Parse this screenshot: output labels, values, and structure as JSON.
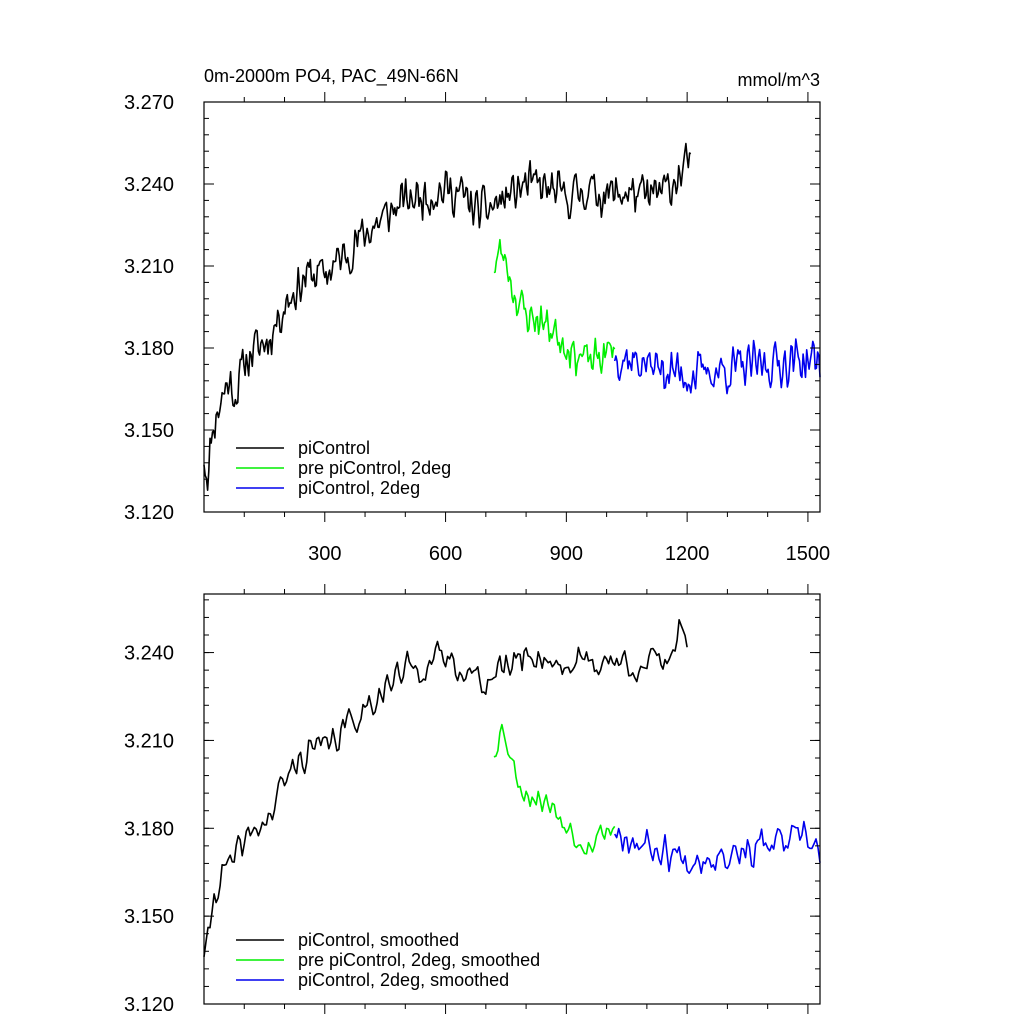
{
  "figure": {
    "title": "0m-2000m PO4, PAC_49N-66N",
    "units": "mmol/m^3"
  },
  "colors": {
    "piControl": "#000000",
    "pre_piControl_2deg": "#00ee00",
    "piControl_2deg": "#0000ee"
  },
  "chart_data": [
    {
      "type": "line",
      "title": "0m-2000m PO4, PAC_49N-66N",
      "units_label": "mmol/m^3",
      "xlabel": "",
      "ylabel": "",
      "xlim": [
        0,
        1530
      ],
      "ylim": [
        3.12,
        3.27
      ],
      "xticks": [
        300,
        600,
        900,
        1200,
        1500
      ],
      "xtick_labels": [
        "300",
        "600",
        "900",
        "1200",
        "1500"
      ],
      "yticks": [
        3.12,
        3.15,
        3.18,
        3.21,
        3.24,
        3.27
      ],
      "ytick_labels": [
        "3.120",
        "3.150",
        "3.180",
        "3.210",
        "3.240",
        "3.270"
      ],
      "legend_position": "bottom-left",
      "series": [
        {
          "name": "piControl",
          "color": "#000000",
          "anchors": [
            [
              0,
              3.14
            ],
            [
              10,
              3.133
            ],
            [
              20,
              3.15
            ],
            [
              40,
              3.16
            ],
            [
              60,
              3.168
            ],
            [
              80,
              3.163
            ],
            [
              100,
              3.175
            ],
            [
              130,
              3.18
            ],
            [
              160,
              3.183
            ],
            [
              200,
              3.196
            ],
            [
              230,
              3.202
            ],
            [
              260,
              3.207
            ],
            [
              300,
              3.207
            ],
            [
              350,
              3.214
            ],
            [
              400,
              3.222
            ],
            [
              450,
              3.228
            ],
            [
              500,
              3.234
            ],
            [
              550,
              3.236
            ],
            [
              600,
              3.238
            ],
            [
              640,
              3.236
            ],
            [
              680,
              3.23
            ],
            [
              720,
              3.232
            ],
            [
              760,
              3.236
            ],
            [
              800,
              3.24
            ],
            [
              850,
              3.238
            ],
            [
              900,
              3.235
            ],
            [
              950,
              3.238
            ],
            [
              1000,
              3.236
            ],
            [
              1050,
              3.237
            ],
            [
              1100,
              3.235
            ],
            [
              1150,
              3.238
            ],
            [
              1190,
              3.245
            ],
            [
              1210,
              3.25
            ]
          ],
          "noise": 0.0095,
          "step": 3,
          "seed": 11
        },
        {
          "name": "pre piControl, 2deg",
          "color": "#00ee00",
          "anchors": [
            [
              720,
              3.21
            ],
            [
              735,
              3.215
            ],
            [
              750,
              3.212
            ],
            [
              770,
              3.2
            ],
            [
              800,
              3.192
            ],
            [
              840,
              3.19
            ],
            [
              880,
              3.185
            ],
            [
              920,
              3.178
            ],
            [
              960,
              3.175
            ],
            [
              1000,
              3.178
            ],
            [
              1020,
              3.18
            ]
          ],
          "noise": 0.0085,
          "step": 3,
          "seed": 23
        },
        {
          "name": "piControl, 2deg",
          "color": "#0000ee",
          "anchors": [
            [
              1020,
              3.178
            ],
            [
              1100,
              3.174
            ],
            [
              1200,
              3.17
            ],
            [
              1300,
              3.172
            ],
            [
              1400,
              3.174
            ],
            [
              1500,
              3.176
            ],
            [
              1530,
              3.174
            ]
          ],
          "noise": 0.01,
          "step": 3,
          "seed": 37
        }
      ],
      "legend": [
        "piControl",
        "pre piControl, 2deg",
        "piControl, 2deg"
      ]
    },
    {
      "type": "line",
      "title": "",
      "xlabel": "",
      "ylabel": "",
      "xlim": [
        0,
        1530
      ],
      "ylim": [
        3.12,
        3.26
      ],
      "xticks": [
        300,
        600,
        900,
        1200,
        1500
      ],
      "xtick_labels": [],
      "yticks": [
        3.12,
        3.15,
        3.18,
        3.21,
        3.24
      ],
      "ytick_labels": [
        "3.120",
        "3.150",
        "3.180",
        "3.210",
        "3.240"
      ],
      "legend_position": "bottom-left",
      "series": [
        {
          "name": "piControl, smoothed",
          "color": "#000000",
          "anchors": [
            [
              0,
              3.138
            ],
            [
              10,
              3.14
            ],
            [
              25,
              3.158
            ],
            [
              45,
              3.165
            ],
            [
              70,
              3.167
            ],
            [
              100,
              3.175
            ],
            [
              130,
              3.18
            ],
            [
              160,
              3.183
            ],
            [
              200,
              3.196
            ],
            [
              230,
              3.202
            ],
            [
              260,
              3.207
            ],
            [
              300,
              3.207
            ],
            [
              350,
              3.214
            ],
            [
              400,
              3.222
            ],
            [
              450,
              3.228
            ],
            [
              500,
              3.234
            ],
            [
              550,
              3.236
            ],
            [
              600,
              3.238
            ],
            [
              640,
              3.236
            ],
            [
              680,
              3.23
            ],
            [
              720,
              3.232
            ],
            [
              760,
              3.236
            ],
            [
              800,
              3.24
            ],
            [
              850,
              3.238
            ],
            [
              900,
              3.235
            ],
            [
              950,
              3.238
            ],
            [
              1000,
              3.236
            ],
            [
              1050,
              3.237
            ],
            [
              1100,
              3.235
            ],
            [
              1150,
              3.238
            ],
            [
              1190,
              3.25
            ],
            [
              1200,
              3.246
            ]
          ],
          "noise": 0.007,
          "step": 5,
          "seed": 41
        },
        {
          "name": "pre piControl, 2deg, smoothed",
          "color": "#00ee00",
          "anchors": [
            [
              720,
              3.206
            ],
            [
              735,
              3.214
            ],
            [
              750,
              3.212
            ],
            [
              770,
              3.2
            ],
            [
              800,
              3.192
            ],
            [
              840,
              3.19
            ],
            [
              880,
              3.185
            ],
            [
              920,
              3.178
            ],
            [
              960,
              3.175
            ],
            [
              1000,
              3.18
            ],
            [
              1020,
              3.18
            ]
          ],
          "noise": 0.006,
          "step": 5,
          "seed": 53
        },
        {
          "name": "piControl, 2deg, smoothed",
          "color": "#0000ee",
          "anchors": [
            [
              1020,
              3.18
            ],
            [
              1100,
              3.174
            ],
            [
              1200,
              3.17
            ],
            [
              1300,
              3.172
            ],
            [
              1400,
              3.174
            ],
            [
              1500,
              3.176
            ],
            [
              1530,
              3.172
            ]
          ],
          "noise": 0.0075,
          "step": 5,
          "seed": 67
        }
      ],
      "legend": [
        "piControl, smoothed",
        "pre piControl, 2deg, smoothed",
        "piControl, 2deg, smoothed"
      ]
    }
  ]
}
